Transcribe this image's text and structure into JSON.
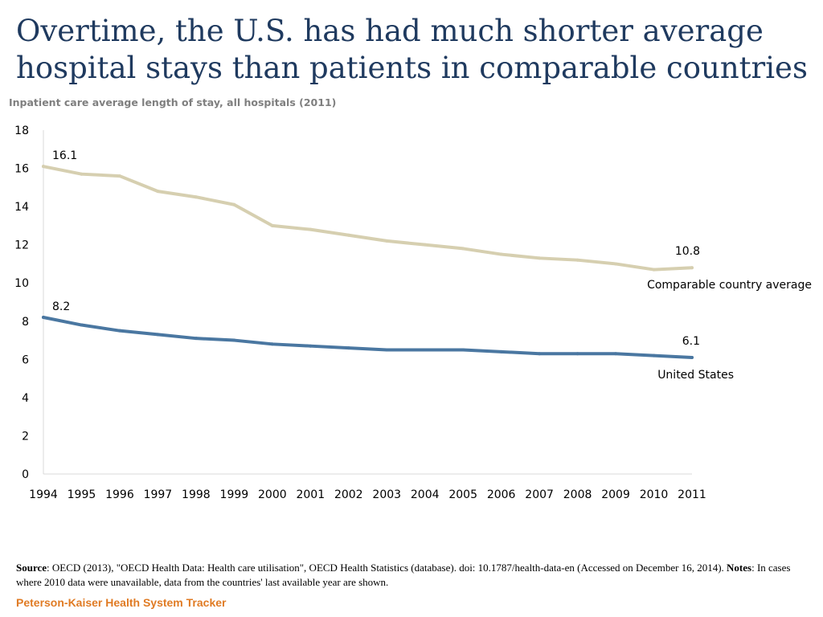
{
  "title": "Overtime, the U.S. has had much shorter average hospital stays than patients in comparable countries",
  "subtitle": "Inpatient care average length of stay, all hospitals (2011)",
  "chart_data": {
    "type": "line",
    "x": [
      1994,
      1995,
      1996,
      1997,
      1998,
      1999,
      2000,
      2001,
      2002,
      2003,
      2004,
      2005,
      2006,
      2007,
      2008,
      2009,
      2010,
      2011
    ],
    "ylim": [
      0,
      18
    ],
    "yticks": [
      0,
      2,
      4,
      6,
      8,
      10,
      12,
      14,
      16,
      18
    ],
    "series": [
      {
        "name": "Comparable country average",
        "color": "#d6cfb0",
        "values": [
          16.1,
          15.7,
          15.6,
          14.8,
          14.5,
          14.1,
          13.0,
          12.8,
          12.5,
          12.2,
          12.0,
          11.8,
          11.5,
          11.3,
          11.2,
          11.0,
          10.7,
          10.8
        ],
        "start_label": "16.1",
        "end_label": "10.8"
      },
      {
        "name": "United States",
        "color": "#4a77a1",
        "values": [
          8.2,
          7.8,
          7.5,
          7.3,
          7.1,
          7.0,
          6.8,
          6.7,
          6.6,
          6.5,
          6.5,
          6.5,
          6.4,
          6.3,
          6.3,
          6.3,
          6.2,
          6.1
        ],
        "start_label": "8.2",
        "end_label": "6.1"
      }
    ]
  },
  "footer": {
    "source_label": "Source",
    "source_text": ": OECD (2013), \"OECD Health Data: Health care utilisation\", OECD Health Statistics (database).  doi: 10.1787/health-data-en (Accessed on December 16, 2014). ",
    "notes_label": "Notes",
    "notes_text": ": In cases where 2010 data were unavailable, data from the countries' last available year are shown."
  },
  "brand": "Peterson-Kaiser Health System Tracker"
}
